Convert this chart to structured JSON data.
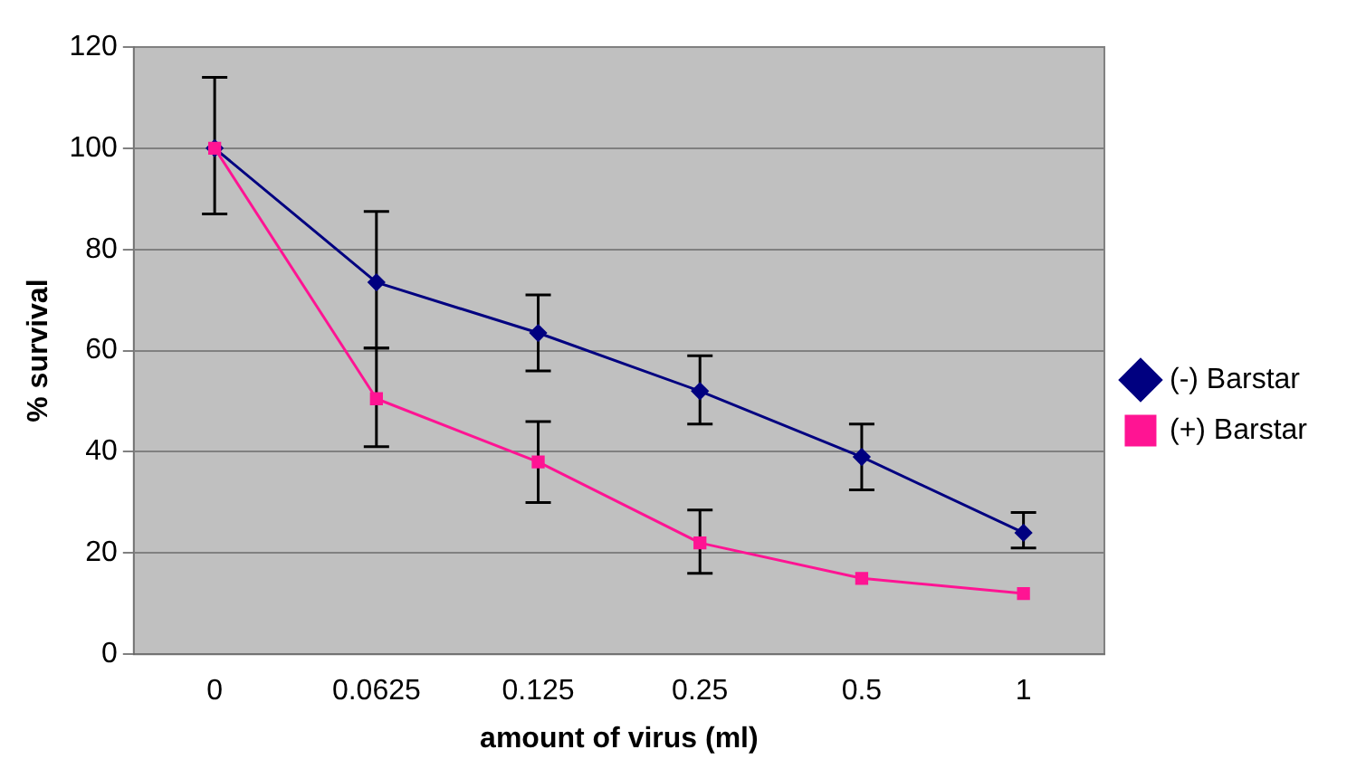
{
  "chart_data": {
    "type": "line",
    "xlabel": "amount of virus (ml)",
    "ylabel": "% survival",
    "categories": [
      "0",
      "0.0625",
      "0.125",
      "0.25",
      "0.5",
      "1"
    ],
    "series": [
      {
        "name": "(-) Barstar",
        "color": "#000080",
        "marker": "diamond",
        "values": [
          100,
          73.5,
          63.5,
          52,
          39,
          24
        ],
        "errors": [
          [
            87,
            114
          ],
          [
            60.5,
            87.5
          ],
          [
            56,
            71
          ],
          [
            45.5,
            59
          ],
          [
            32.5,
            45.5
          ],
          [
            21,
            28
          ]
        ]
      },
      {
        "name": "(+) Barstar",
        "color": "#ff1493",
        "marker": "square",
        "values": [
          100,
          50.5,
          38,
          22,
          15,
          12
        ],
        "errors": [
          null,
          [
            41,
            60.5
          ],
          [
            30,
            46
          ],
          [
            16,
            28.5
          ],
          null,
          null
        ]
      }
    ],
    "ylim": [
      0,
      120
    ],
    "yticks": [
      0,
      20,
      40,
      60,
      80,
      100,
      120
    ],
    "grid": "y",
    "legend": "right",
    "line_style": "solid"
  }
}
